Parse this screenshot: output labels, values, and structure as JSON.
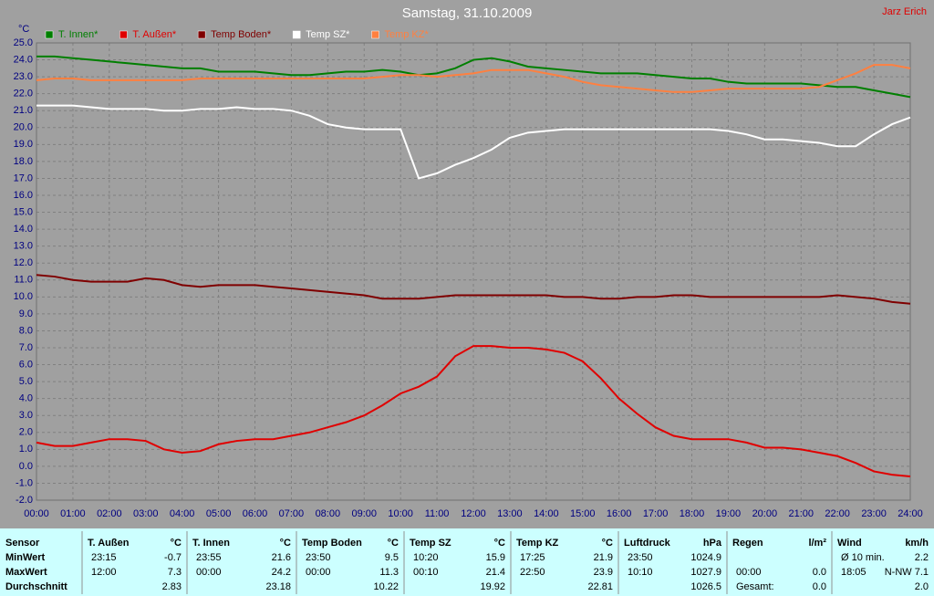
{
  "chart_data": {
    "type": "line",
    "title": "Samstag, 31.10.2009",
    "annotation": "Jarz Erich",
    "y_label": "°C",
    "grid": true,
    "legend": "top-left",
    "xlim": [
      0,
      24
    ],
    "ylim": [
      -2,
      25
    ],
    "xticks": [
      {
        "value": 0,
        "label": "00:00"
      },
      {
        "value": 1,
        "label": "01:00"
      },
      {
        "value": 2,
        "label": "02:00"
      },
      {
        "value": 3,
        "label": "03:00"
      },
      {
        "value": 4,
        "label": "04:00"
      },
      {
        "value": 5,
        "label": "05:00"
      },
      {
        "value": 6,
        "label": "06:00"
      },
      {
        "value": 7,
        "label": "07:00"
      },
      {
        "value": 8,
        "label": "08:00"
      },
      {
        "value": 9,
        "label": "09:00"
      },
      {
        "value": 10,
        "label": "10:00"
      },
      {
        "value": 11,
        "label": "11:00"
      },
      {
        "value": 12,
        "label": "12:00"
      },
      {
        "value": 13,
        "label": "13:00"
      },
      {
        "value": 14,
        "label": "14:00"
      },
      {
        "value": 15,
        "label": "15:00"
      },
      {
        "value": 16,
        "label": "16:00"
      },
      {
        "value": 17,
        "label": "17:00"
      },
      {
        "value": 18,
        "label": "18:00"
      },
      {
        "value": 19,
        "label": "19:00"
      },
      {
        "value": 20,
        "label": "20:00"
      },
      {
        "value": 21,
        "label": "21:00"
      },
      {
        "value": 22,
        "label": "22:00"
      },
      {
        "value": 23,
        "label": "23:00"
      },
      {
        "value": 24,
        "label": "24:00"
      }
    ],
    "yticks": [
      {
        "value": -2,
        "label": "-2.0"
      },
      {
        "value": -1,
        "label": "-1.0"
      },
      {
        "value": 0,
        "label": "0.0"
      },
      {
        "value": 1,
        "label": "1.0"
      },
      {
        "value": 2,
        "label": "2.0"
      },
      {
        "value": 3,
        "label": "3.0"
      },
      {
        "value": 4,
        "label": "4.0"
      },
      {
        "value": 5,
        "label": "5.0"
      },
      {
        "value": 6,
        "label": "6.0"
      },
      {
        "value": 7,
        "label": "7.0"
      },
      {
        "value": 8,
        "label": "8.0"
      },
      {
        "value": 9,
        "label": "9.0"
      },
      {
        "value": 10,
        "label": "10.0"
      },
      {
        "value": 11,
        "label": "11.0"
      },
      {
        "value": 12,
        "label": "12.0"
      },
      {
        "value": 13,
        "label": "13.0"
      },
      {
        "value": 14,
        "label": "14.0"
      },
      {
        "value": 15,
        "label": "15.0"
      },
      {
        "value": 16,
        "label": "16.0"
      },
      {
        "value": 17,
        "label": "17.0"
      },
      {
        "value": 18,
        "label": "18.0"
      },
      {
        "value": 19,
        "label": "19.0"
      },
      {
        "value": 20,
        "label": "20.0"
      },
      {
        "value": 21,
        "label": "21.0"
      },
      {
        "value": 22,
        "label": "22.0"
      },
      {
        "value": 23,
        "label": "23.0"
      },
      {
        "value": 24,
        "label": "24.0"
      },
      {
        "value": 25,
        "label": "25.0"
      }
    ],
    "x": [
      0,
      0.5,
      1,
      1.5,
      2,
      2.5,
      3,
      3.5,
      4,
      4.5,
      5,
      5.5,
      6,
      6.5,
      7,
      7.5,
      8,
      8.5,
      9,
      9.5,
      10,
      10.5,
      11,
      11.5,
      12,
      12.5,
      13,
      13.5,
      14,
      14.5,
      15,
      15.5,
      16,
      16.5,
      17,
      17.5,
      18,
      18.5,
      19,
      19.5,
      20,
      20.5,
      21,
      21.5,
      22,
      22.5,
      23,
      23.5,
      24
    ],
    "series": [
      {
        "name": "T. Innen*",
        "color": "#007f00",
        "values": [
          24.2,
          24.2,
          24.1,
          24.0,
          23.9,
          23.8,
          23.7,
          23.6,
          23.5,
          23.5,
          23.3,
          23.3,
          23.3,
          23.2,
          23.1,
          23.1,
          23.2,
          23.3,
          23.3,
          23.4,
          23.3,
          23.1,
          23.2,
          23.5,
          24.0,
          24.1,
          23.9,
          23.6,
          23.5,
          23.4,
          23.3,
          23.2,
          23.2,
          23.2,
          23.1,
          23.0,
          22.9,
          22.9,
          22.7,
          22.6,
          22.6,
          22.6,
          22.6,
          22.5,
          22.4,
          22.4,
          22.2,
          22.0,
          21.8
        ]
      },
      {
        "name": "T. Außen*",
        "color": "#e00000",
        "values": [
          1.4,
          1.2,
          1.2,
          1.4,
          1.6,
          1.6,
          1.5,
          1.0,
          0.8,
          0.9,
          1.3,
          1.5,
          1.6,
          1.6,
          1.8,
          2.0,
          2.3,
          2.6,
          3.0,
          3.6,
          4.3,
          4.7,
          5.3,
          6.5,
          7.1,
          7.1,
          7.0,
          7.0,
          6.9,
          6.7,
          6.2,
          5.2,
          4.0,
          3.1,
          2.3,
          1.8,
          1.6,
          1.6,
          1.6,
          1.4,
          1.1,
          1.1,
          1.0,
          0.8,
          0.6,
          0.2,
          -0.3,
          -0.5,
          -0.6
        ]
      },
      {
        "name": "Temp Boden*",
        "color": "#7f0000",
        "values": [
          11.3,
          11.2,
          11.0,
          10.9,
          10.9,
          10.9,
          11.1,
          11.0,
          10.7,
          10.6,
          10.7,
          10.7,
          10.7,
          10.6,
          10.5,
          10.4,
          10.3,
          10.2,
          10.1,
          9.9,
          9.9,
          9.9,
          10.0,
          10.1,
          10.1,
          10.1,
          10.1,
          10.1,
          10.1,
          10.0,
          10.0,
          9.9,
          9.9,
          10.0,
          10.0,
          10.1,
          10.1,
          10.0,
          10.0,
          10.0,
          10.0,
          10.0,
          10.0,
          10.0,
          10.1,
          10.0,
          9.9,
          9.7,
          9.6
        ]
      },
      {
        "name": "Temp SZ*",
        "color": "#ffffff",
        "values": [
          21.3,
          21.3,
          21.3,
          21.2,
          21.1,
          21.1,
          21.1,
          21.0,
          21.0,
          21.1,
          21.1,
          21.2,
          21.1,
          21.1,
          21.0,
          20.7,
          20.2,
          20.0,
          19.9,
          19.9,
          19.9,
          17.0,
          17.3,
          17.8,
          18.2,
          18.7,
          19.4,
          19.7,
          19.8,
          19.9,
          19.9,
          19.9,
          19.9,
          19.9,
          19.9,
          19.9,
          19.9,
          19.9,
          19.8,
          19.6,
          19.3,
          19.3,
          19.2,
          19.1,
          18.9,
          18.9,
          19.6,
          20.2,
          20.6
        ]
      },
      {
        "name": "Temp KZ*",
        "color": "#ff8040",
        "values": [
          22.8,
          22.9,
          22.9,
          22.8,
          22.8,
          22.8,
          22.8,
          22.8,
          22.8,
          22.9,
          22.9,
          22.9,
          22.9,
          22.9,
          22.9,
          22.9,
          22.9,
          22.9,
          22.9,
          23.0,
          23.1,
          23.1,
          23.0,
          23.1,
          23.2,
          23.4,
          23.4,
          23.4,
          23.2,
          23.0,
          22.7,
          22.5,
          22.4,
          22.3,
          22.2,
          22.1,
          22.1,
          22.2,
          22.3,
          22.3,
          22.3,
          22.3,
          22.3,
          22.4,
          22.8,
          23.2,
          23.7,
          23.7,
          23.5
        ]
      }
    ]
  },
  "table": {
    "header": [
      [
        "Sensor",
        null
      ],
      [
        "T. Außen",
        "°C"
      ],
      [
        "T. Innen",
        "°C"
      ],
      [
        "Temp Boden",
        "°C"
      ],
      [
        "Temp SZ",
        "°C"
      ],
      [
        "Temp KZ",
        "°C"
      ],
      [
        "Luftdruck",
        "hPa"
      ],
      [
        "Regen",
        "l/m²"
      ],
      [
        "Wind",
        "km/h"
      ]
    ],
    "rows": [
      {
        "label": "MinWert",
        "cells": [
          [
            "23:15",
            "-0.7"
          ],
          [
            "23:55",
            "21.6"
          ],
          [
            "23:50",
            "9.5"
          ],
          [
            "10:20",
            "15.9"
          ],
          [
            "17:25",
            "21.9"
          ],
          [
            "23:50",
            "1024.9"
          ],
          [
            null,
            null
          ],
          [
            "Ø 10 min.",
            "2.2"
          ]
        ]
      },
      {
        "label": "MaxWert",
        "cells": [
          [
            "12:00",
            "7.3"
          ],
          [
            "00:00",
            "24.2"
          ],
          [
            "00:00",
            "11.3"
          ],
          [
            "00:10",
            "21.4"
          ],
          [
            "22:50",
            "23.9"
          ],
          [
            "10:10",
            "1027.9"
          ],
          [
            "00:00",
            "0.0"
          ],
          [
            "18:05",
            "N-NW 7.1"
          ]
        ]
      },
      {
        "label": "Durchschnitt",
        "cells": [
          [
            null,
            "2.83"
          ],
          [
            null,
            "23.18"
          ],
          [
            null,
            "10.22"
          ],
          [
            null,
            "19.92"
          ],
          [
            null,
            "22.81"
          ],
          [
            null,
            "1026.5"
          ],
          [
            "Gesamt:",
            "0.0"
          ],
          [
            null,
            "2.0"
          ]
        ]
      }
    ]
  }
}
